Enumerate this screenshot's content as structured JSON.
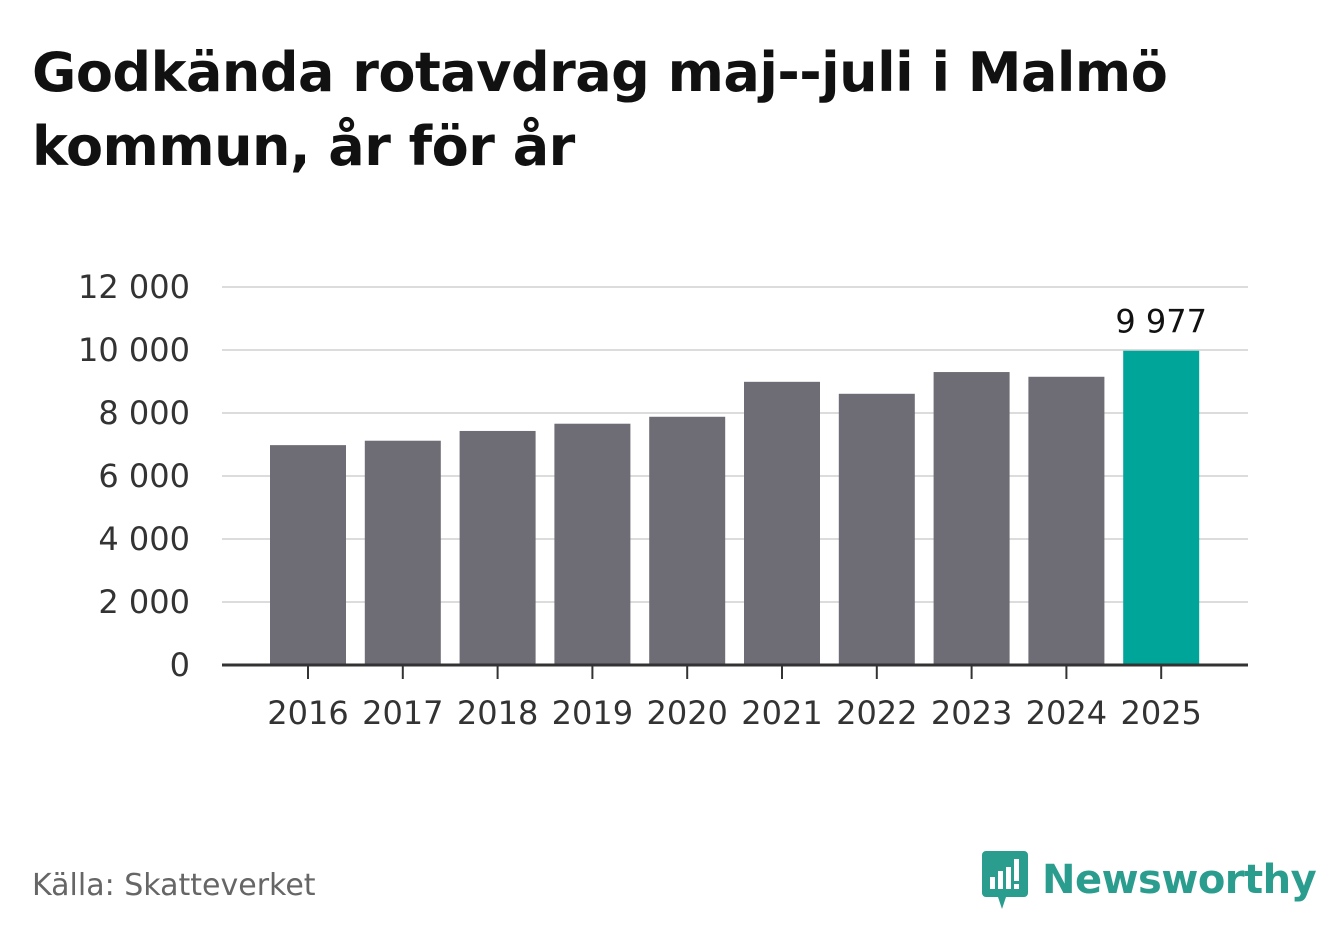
{
  "title": "Godkända rotavdrag maj--juli i Malmö kommun, år för år",
  "source": "Källa: Skatteverket",
  "brand": {
    "name": "Newsworthy",
    "icon": "newsworthy-logo-icon",
    "color": "#2a9d8f"
  },
  "colors": {
    "bar": "#6e6d75",
    "highlight": "#00a59a",
    "grid": "#dcdcdc",
    "axis": "#333333"
  },
  "chart_data": {
    "type": "bar",
    "title": "Godkända rotavdrag maj--juli i Malmö kommun, år för år",
    "xlabel": "",
    "ylabel": "",
    "categories": [
      "2016",
      "2017",
      "2018",
      "2019",
      "2020",
      "2021",
      "2022",
      "2023",
      "2024",
      "2025"
    ],
    "values": [
      6980,
      7120,
      7430,
      7660,
      7880,
      8990,
      8610,
      9300,
      9150,
      9977
    ],
    "highlight_index": 9,
    "data_labels": [
      {
        "index": 9,
        "text": "9 977"
      }
    ],
    "ylim": [
      0,
      12000
    ],
    "yticks": [
      0,
      2000,
      4000,
      6000,
      8000,
      10000,
      12000
    ],
    "ytick_labels": [
      "0",
      "2 000",
      "4 000",
      "6 000",
      "8 000",
      "10 000",
      "12 000"
    ],
    "grid": true,
    "legend": "none"
  }
}
